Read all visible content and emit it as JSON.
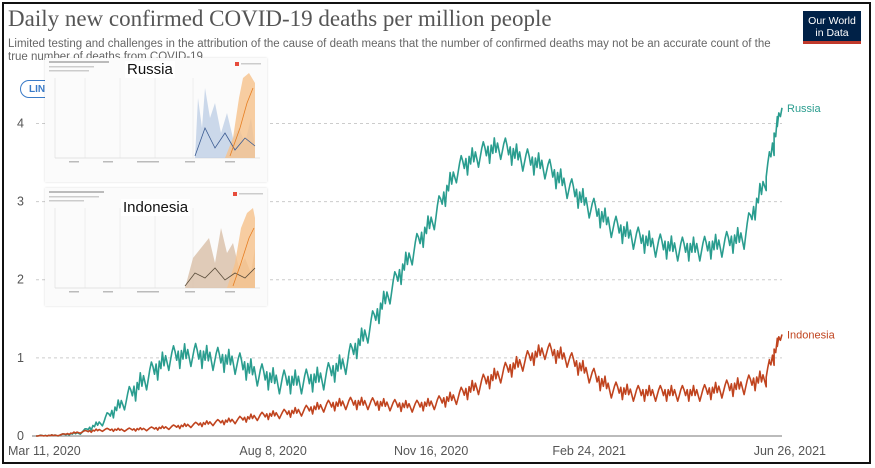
{
  "header": {
    "title": "Daily new confirmed COVID-19 deaths per million people",
    "subtitle": "Limited testing and challenges in the attribution of the cause of death means that the number of confirmed deaths may not be an accurate count of the true number of deaths from COVID-19.",
    "logo_line1": "Our World",
    "logo_line2": "in Data",
    "scale_button": "LIN"
  },
  "insets": {
    "russia_label": "Russia",
    "indonesia_label": "Indonesia"
  },
  "chart_data": {
    "type": "line",
    "x_labels": [
      "Mar 11, 2020",
      "Aug 8, 2020",
      "Nov 16, 2020",
      "Feb 24, 2021",
      "Jun 26, 2021"
    ],
    "y_ticks": [
      0,
      1,
      2,
      3,
      4
    ],
    "ylim": [
      0,
      4.3
    ],
    "grid": true,
    "series": [
      {
        "name": "Russia",
        "color": "#2a9d8f",
        "x": [
          "2020-03-11",
          "2020-03-25",
          "2020-04-08",
          "2020-04-22",
          "2020-05-06",
          "2020-05-20",
          "2020-06-03",
          "2020-06-17",
          "2020-07-01",
          "2020-07-15",
          "2020-07-29",
          "2020-08-12",
          "2020-08-26",
          "2020-09-09",
          "2020-09-23",
          "2020-10-07",
          "2020-10-21",
          "2020-11-04",
          "2020-11-18",
          "2020-12-02",
          "2020-12-16",
          "2020-12-30",
          "2021-01-13",
          "2021-01-27",
          "2021-02-10",
          "2021-02-24",
          "2021-03-10",
          "2021-03-24",
          "2021-04-07",
          "2021-04-21",
          "2021-05-05",
          "2021-05-19",
          "2021-06-02",
          "2021-06-16",
          "2021-06-26"
        ],
        "values": [
          0,
          0.01,
          0.04,
          0.18,
          0.45,
          0.75,
          1.0,
          1.05,
          1.0,
          0.95,
          0.8,
          0.7,
          0.7,
          0.75,
          0.95,
          1.35,
          1.85,
          2.35,
          2.8,
          3.4,
          3.6,
          3.7,
          3.55,
          3.45,
          3.2,
          2.95,
          2.7,
          2.55,
          2.45,
          2.4,
          2.4,
          2.45,
          2.55,
          3.3,
          4.2
        ]
      },
      {
        "name": "Indonesia",
        "color": "#c0441f",
        "x": [
          "2020-03-11",
          "2020-03-25",
          "2020-04-08",
          "2020-04-22",
          "2020-05-06",
          "2020-05-20",
          "2020-06-03",
          "2020-06-17",
          "2020-07-01",
          "2020-07-15",
          "2020-07-29",
          "2020-08-12",
          "2020-08-26",
          "2020-09-09",
          "2020-09-23",
          "2020-10-07",
          "2020-10-21",
          "2020-11-04",
          "2020-11-18",
          "2020-12-02",
          "2020-12-16",
          "2020-12-30",
          "2021-01-13",
          "2021-01-27",
          "2021-02-10",
          "2021-02-24",
          "2021-03-10",
          "2021-03-24",
          "2021-04-07",
          "2021-04-21",
          "2021-05-05",
          "2021-05-19",
          "2021-06-02",
          "2021-06-16",
          "2021-06-26"
        ],
        "values": [
          0,
          0.01,
          0.05,
          0.08,
          0.08,
          0.09,
          0.11,
          0.14,
          0.17,
          0.2,
          0.25,
          0.28,
          0.32,
          0.38,
          0.42,
          0.42,
          0.4,
          0.38,
          0.42,
          0.5,
          0.65,
          0.8,
          0.95,
          1.1,
          1.0,
          0.8,
          0.6,
          0.55,
          0.55,
          0.55,
          0.55,
          0.6,
          0.65,
          0.75,
          1.3
        ]
      }
    ]
  }
}
